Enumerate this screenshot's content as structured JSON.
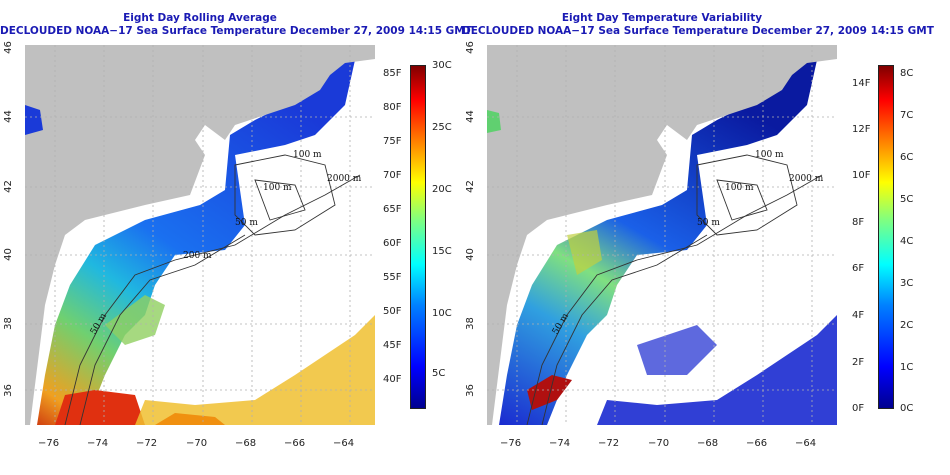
{
  "left_panel": {
    "title_line1": "Eight Day Rolling Average",
    "title_line2": "DECLOUDED NOAA−17 Sea Surface Temperature December 27, 2009 14:15 GMT",
    "x_ticks": [
      "−76",
      "−74",
      "−72",
      "−70",
      "−68",
      "−66",
      "−64"
    ],
    "y_ticks": [
      "36",
      "38",
      "40",
      "42",
      "44",
      "46"
    ],
    "contour_labels": [
      "100 m",
      "100 m",
      "50 m",
      "200 m",
      "50 m",
      "2000 m"
    ],
    "colorbar_f": [
      "85F",
      "80F",
      "75F",
      "70F",
      "65F",
      "60F",
      "55F",
      "50F",
      "45F",
      "40F"
    ],
    "colorbar_c": [
      "30C",
      "25C",
      "20C",
      "15C",
      "10C",
      "5C"
    ]
  },
  "right_panel": {
    "title_line1": "Eight Day Temperature Variability",
    "title_line2": "DECLOUDED NOAA−17 Sea Surface Temperature December 27, 2009 14:15 GMT",
    "x_ticks": [
      "−76",
      "−74",
      "−72",
      "−70",
      "−68",
      "−66",
      "−64"
    ],
    "y_ticks": [
      "36",
      "38",
      "40",
      "42",
      "44",
      "46"
    ],
    "contour_labels": [
      "100 m",
      "100 m",
      "50 m",
      "2000 m",
      "50 m"
    ],
    "colorbar_f": [
      "14F",
      "12F",
      "10F",
      "8F",
      "6F",
      "4F",
      "2F",
      "0F"
    ],
    "colorbar_c": [
      "8C",
      "7C",
      "6C",
      "5C",
      "4C",
      "3C",
      "2C",
      "1C",
      "0C"
    ]
  },
  "colors": {
    "land": "#c0c0c0",
    "title": "#1a1ab4",
    "jet_low": "#00008f",
    "jet_high": "#800000"
  }
}
